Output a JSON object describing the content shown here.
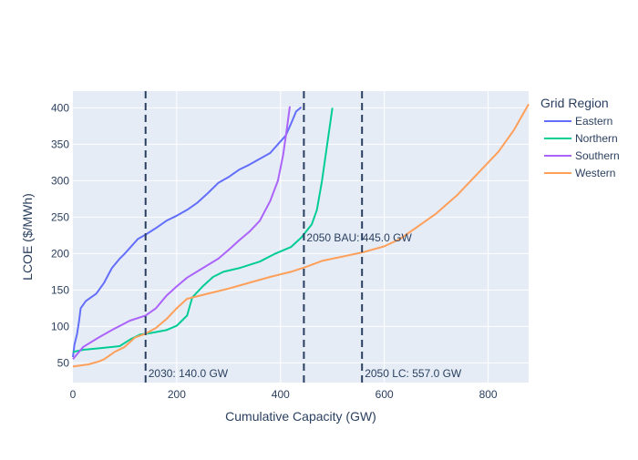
{
  "chart_data": {
    "type": "line",
    "title": "",
    "xlabel": "Cumulative Capacity (GW)",
    "ylabel": "LCOE ($/MWh)",
    "xlim": [
      0,
      878
    ],
    "ylim": [
      23,
      423
    ],
    "x_ticks": [
      0,
      200,
      400,
      600,
      800
    ],
    "y_ticks": [
      50,
      100,
      150,
      200,
      250,
      300,
      350,
      400
    ],
    "grid": true,
    "legend": {
      "title": "Grid Region",
      "placement": "right"
    },
    "series": [
      {
        "name": "Eastern",
        "color": "#636efa",
        "points": [
          [
            0,
            58
          ],
          [
            3,
            75
          ],
          [
            8,
            90
          ],
          [
            12,
            108
          ],
          [
            15,
            125
          ],
          [
            25,
            135
          ],
          [
            45,
            145
          ],
          [
            60,
            160
          ],
          [
            75,
            180
          ],
          [
            90,
            193
          ],
          [
            100,
            200
          ],
          [
            115,
            212
          ],
          [
            125,
            220
          ],
          [
            140,
            226
          ],
          [
            160,
            235
          ],
          [
            180,
            245
          ],
          [
            200,
            252
          ],
          [
            220,
            260
          ],
          [
            240,
            270
          ],
          [
            260,
            283
          ],
          [
            280,
            297
          ],
          [
            300,
            305
          ],
          [
            320,
            315
          ],
          [
            340,
            322
          ],
          [
            360,
            330
          ],
          [
            380,
            338
          ],
          [
            395,
            350
          ],
          [
            410,
            362
          ],
          [
            420,
            378
          ],
          [
            430,
            395
          ],
          [
            440,
            401
          ]
        ]
      },
      {
        "name": "Northern",
        "color": "#00cc96",
        "points": [
          [
            0,
            65
          ],
          [
            20,
            68
          ],
          [
            50,
            70
          ],
          [
            90,
            73
          ],
          [
            110,
            82
          ],
          [
            130,
            89
          ],
          [
            150,
            91
          ],
          [
            180,
            95
          ],
          [
            200,
            101
          ],
          [
            220,
            115
          ],
          [
            230,
            140
          ],
          [
            250,
            155
          ],
          [
            270,
            168
          ],
          [
            290,
            175
          ],
          [
            320,
            180
          ],
          [
            360,
            189
          ],
          [
            390,
            200
          ],
          [
            420,
            209
          ],
          [
            440,
            222
          ],
          [
            460,
            240
          ],
          [
            470,
            260
          ],
          [
            480,
            300
          ],
          [
            490,
            350
          ],
          [
            500,
            400
          ]
        ]
      },
      {
        "name": "Southern",
        "color": "#ab63fa",
        "points": [
          [
            0,
            55
          ],
          [
            8,
            62
          ],
          [
            20,
            72
          ],
          [
            50,
            85
          ],
          [
            80,
            97
          ],
          [
            110,
            108
          ],
          [
            140,
            115
          ],
          [
            160,
            125
          ],
          [
            180,
            142
          ],
          [
            200,
            155
          ],
          [
            220,
            167
          ],
          [
            250,
            180
          ],
          [
            280,
            193
          ],
          [
            300,
            205
          ],
          [
            320,
            218
          ],
          [
            340,
            230
          ],
          [
            360,
            245
          ],
          [
            380,
            272
          ],
          [
            395,
            300
          ],
          [
            405,
            335
          ],
          [
            412,
            370
          ],
          [
            418,
            402
          ]
        ]
      },
      {
        "name": "Western",
        "color": "#fe9f5a",
        "points": [
          [
            0,
            45
          ],
          [
            30,
            48
          ],
          [
            50,
            52
          ],
          [
            60,
            55
          ],
          [
            80,
            65
          ],
          [
            100,
            72
          ],
          [
            120,
            85
          ],
          [
            140,
            90
          ],
          [
            160,
            98
          ],
          [
            180,
            110
          ],
          [
            200,
            125
          ],
          [
            220,
            138
          ],
          [
            260,
            145
          ],
          [
            300,
            152
          ],
          [
            340,
            160
          ],
          [
            380,
            168
          ],
          [
            420,
            175
          ],
          [
            450,
            182
          ],
          [
            480,
            190
          ],
          [
            520,
            196
          ],
          [
            560,
            202
          ],
          [
            600,
            210
          ],
          [
            630,
            220
          ],
          [
            660,
            235
          ],
          [
            700,
            255
          ],
          [
            740,
            280
          ],
          [
            780,
            310
          ],
          [
            820,
            340
          ],
          [
            850,
            370
          ],
          [
            870,
            395
          ],
          [
            878,
            405
          ]
        ]
      }
    ],
    "annotations": [
      {
        "label": "2030: 140.0 GW",
        "x": 140,
        "position": "bottom"
      },
      {
        "label": "2050 BAU: 445.0 GW",
        "x": 445,
        "position": "middle"
      },
      {
        "label": "2050 LC: 557.0 GW",
        "x": 557,
        "position": "bottom"
      }
    ]
  }
}
